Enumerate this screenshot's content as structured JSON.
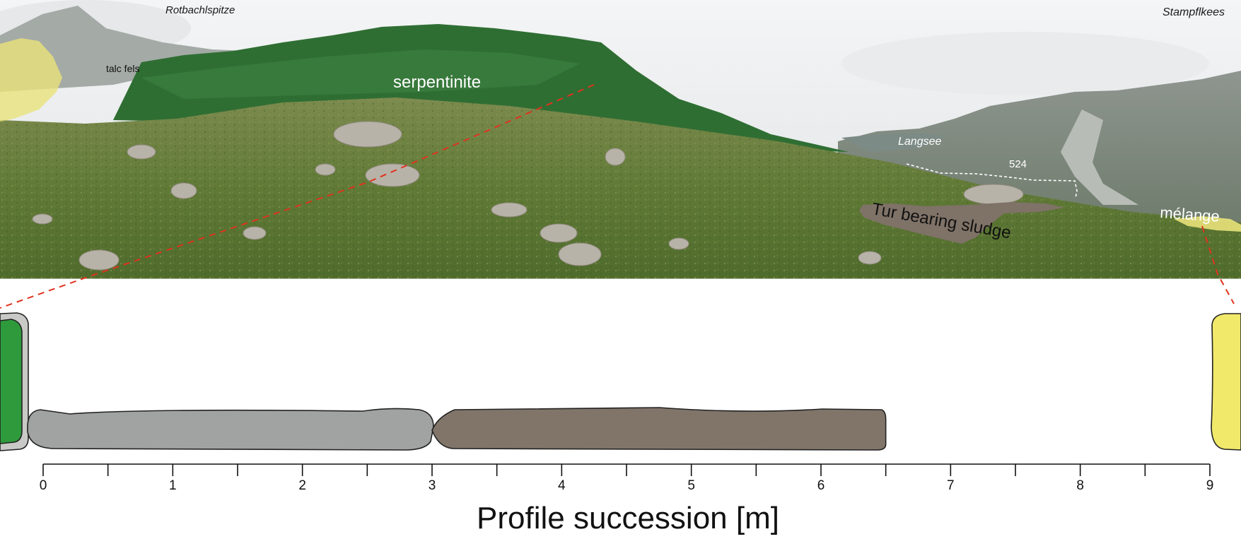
{
  "photo_labels": {
    "rotbachlspitze": "Rotbachlspitze",
    "stampflkees": "Stampflkees",
    "talc_fels": "talc fels",
    "serpentinite": "serpentinite",
    "langsee": "Langsee",
    "station_524": "524",
    "tur_bearing_sludge": "Tur bearing sludge",
    "melange": "mélange"
  },
  "colors": {
    "serpentinite_green": "#2f9a3c",
    "talc_grey": "#c9c9c7",
    "grey_unit": "#a1a3a2",
    "sludge_brown": "#81756a",
    "melange_yellow": "#f0e96a",
    "correlation_line": "#e0321f"
  },
  "scale": {
    "title": "Profile succession [m]",
    "ticks": [
      {
        "value": 0,
        "label": "0"
      },
      {
        "value": 1,
        "label": "1"
      },
      {
        "value": 2,
        "label": "2"
      },
      {
        "value": 3,
        "label": "3"
      },
      {
        "value": 4,
        "label": "4"
      },
      {
        "value": 5,
        "label": "5"
      },
      {
        "value": 6,
        "label": "6"
      },
      {
        "value": 7,
        "label": "7"
      },
      {
        "value": 8,
        "label": "8"
      },
      {
        "value": 9,
        "label": "9"
      }
    ],
    "min": 0,
    "max": 9
  },
  "profile_units": [
    {
      "id": "grey-unit",
      "from_m": 0,
      "to_m": 3,
      "color_key": "grey_unit"
    },
    {
      "id": "tur-sludge-unit",
      "from_m": 3,
      "to_m": 6.5,
      "color_key": "sludge_brown"
    }
  ]
}
